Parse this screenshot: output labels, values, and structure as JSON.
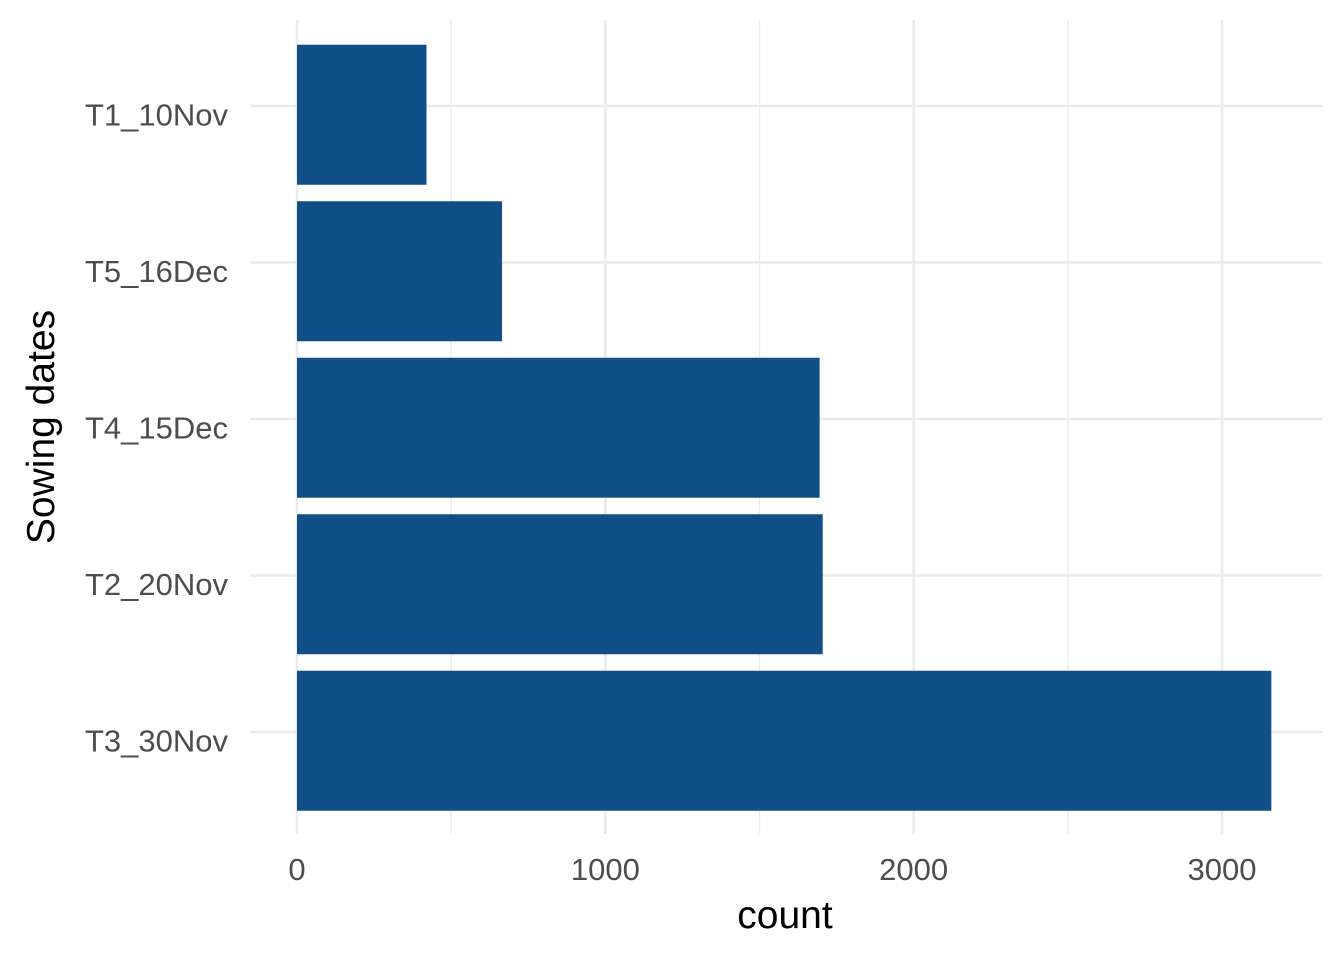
{
  "chart_data": {
    "type": "bar",
    "orientation": "horizontal",
    "categories": [
      "T1_10Nov",
      "T5_16Dec",
      "T4_15Dec",
      "T2_20Nov",
      "T3_30Nov"
    ],
    "values": [
      420,
      665,
      1695,
      1705,
      3160
    ],
    "xlabel": "count",
    "ylabel": "Sowing dates",
    "xlim": [
      0,
      3250
    ],
    "x_ticks": [
      0,
      1000,
      2000,
      3000
    ],
    "x_minor_ticks": [
      500,
      1500,
      2500
    ],
    "bar_color": "#114f89",
    "grid": true,
    "legend": "none"
  }
}
